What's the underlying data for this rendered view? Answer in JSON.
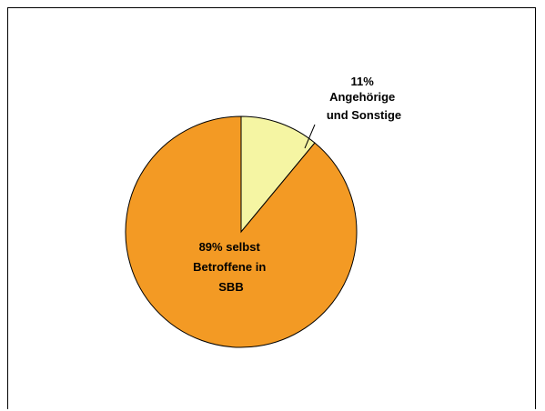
{
  "chart_data": {
    "type": "pie",
    "slices": [
      {
        "value": 11,
        "label_lines": [
          "11%",
          "Angehörige",
          "und Sonstige"
        ],
        "color": "#F5F5A3"
      },
      {
        "value": 89,
        "label_lines": [
          "89%  selbst",
          "Betroffene in",
          "SBB"
        ],
        "color": "#F39A24"
      }
    ],
    "start_angle_deg": 0,
    "direction": "clockwise",
    "outline_color": "#000000",
    "legend": "none"
  }
}
